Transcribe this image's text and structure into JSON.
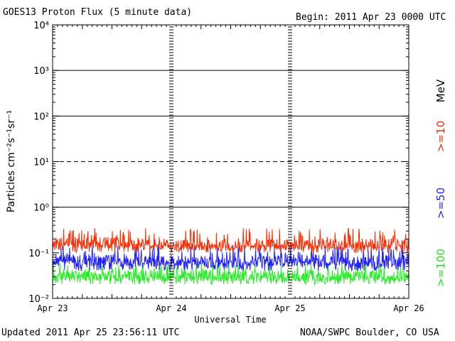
{
  "header": {
    "title": "GOES13 Proton Flux (5 minute data)",
    "begin": "Begin: 2011 Apr 23 0000 UTC"
  },
  "footer": {
    "updated": "Updated 2011 Apr 25 23:56:11 UTC",
    "credit": "NOAA/SWPC Boulder, CO USA"
  },
  "chart_data": {
    "type": "line",
    "title": "GOES13 Proton Flux (5 minute data)",
    "xlabel": "Universal Time",
    "ylabel": "Particles cm⁻²s⁻¹sr⁻¹",
    "yscale": "log",
    "ylim": [
      0.01,
      10000
    ],
    "y_ticks": [
      {
        "value": 0.01,
        "label": "10⁻²"
      },
      {
        "value": 0.1,
        "label": "10⁻¹"
      },
      {
        "value": 1,
        "label": "10⁰"
      },
      {
        "value": 10,
        "label": "10¹"
      },
      {
        "value": 100,
        "label": "10²"
      },
      {
        "value": 1000,
        "label": "10³"
      },
      {
        "value": 10000,
        "label": "10⁴"
      }
    ],
    "x_ticks": [
      "Apr 23",
      "Apr 24",
      "Apr 25",
      "Apr 26"
    ],
    "xlim": [
      "2011-04-23 00:00",
      "2011-04-26 00:00"
    ],
    "threshold_lines": [
      {
        "value": 1,
        "style": "solid"
      },
      {
        "value": 10,
        "style": "dashed"
      },
      {
        "value": 100,
        "style": "solid"
      },
      {
        "value": 1000,
        "style": "solid"
      }
    ],
    "units_label": "MeV",
    "series": [
      {
        "name": ">=10",
        "color": "#ff2a00",
        "approx_range": [
          0.1,
          0.35
        ],
        "x": [
          "2011-04-23 00:00",
          "2011-04-23 06:00",
          "2011-04-23 12:00",
          "2011-04-23 18:00",
          "2011-04-24 00:00",
          "2011-04-24 06:00",
          "2011-04-24 12:00",
          "2011-04-24 18:00",
          "2011-04-25 00:00",
          "2011-04-25 06:00",
          "2011-04-25 12:00",
          "2011-04-25 18:00",
          "2011-04-26 00:00"
        ],
        "values": [
          0.17,
          0.16,
          0.17,
          0.16,
          0.15,
          0.15,
          0.14,
          0.15,
          0.15,
          0.16,
          0.15,
          0.16,
          0.16
        ]
      },
      {
        "name": ">=50",
        "color": "#2020ff",
        "approx_range": [
          0.04,
          0.15
        ],
        "x": [
          "2011-04-23 00:00",
          "2011-04-23 06:00",
          "2011-04-23 12:00",
          "2011-04-23 18:00",
          "2011-04-24 00:00",
          "2011-04-24 06:00",
          "2011-04-24 12:00",
          "2011-04-24 18:00",
          "2011-04-25 00:00",
          "2011-04-25 06:00",
          "2011-04-25 12:00",
          "2011-04-25 18:00",
          "2011-04-26 00:00"
        ],
        "values": [
          0.07,
          0.07,
          0.07,
          0.065,
          0.065,
          0.065,
          0.06,
          0.065,
          0.065,
          0.07,
          0.065,
          0.065,
          0.065
        ]
      },
      {
        "name": ">=100",
        "color": "#22ee22",
        "approx_range": [
          0.02,
          0.06
        ],
        "x": [
          "2011-04-23 00:00",
          "2011-04-23 06:00",
          "2011-04-23 12:00",
          "2011-04-23 18:00",
          "2011-04-24 00:00",
          "2011-04-24 06:00",
          "2011-04-24 12:00",
          "2011-04-24 18:00",
          "2011-04-25 00:00",
          "2011-04-25 06:00",
          "2011-04-25 12:00",
          "2011-04-25 18:00",
          "2011-04-26 00:00"
        ],
        "values": [
          0.033,
          0.032,
          0.033,
          0.031,
          0.031,
          0.031,
          0.03,
          0.031,
          0.031,
          0.032,
          0.031,
          0.031,
          0.031
        ]
      }
    ]
  }
}
